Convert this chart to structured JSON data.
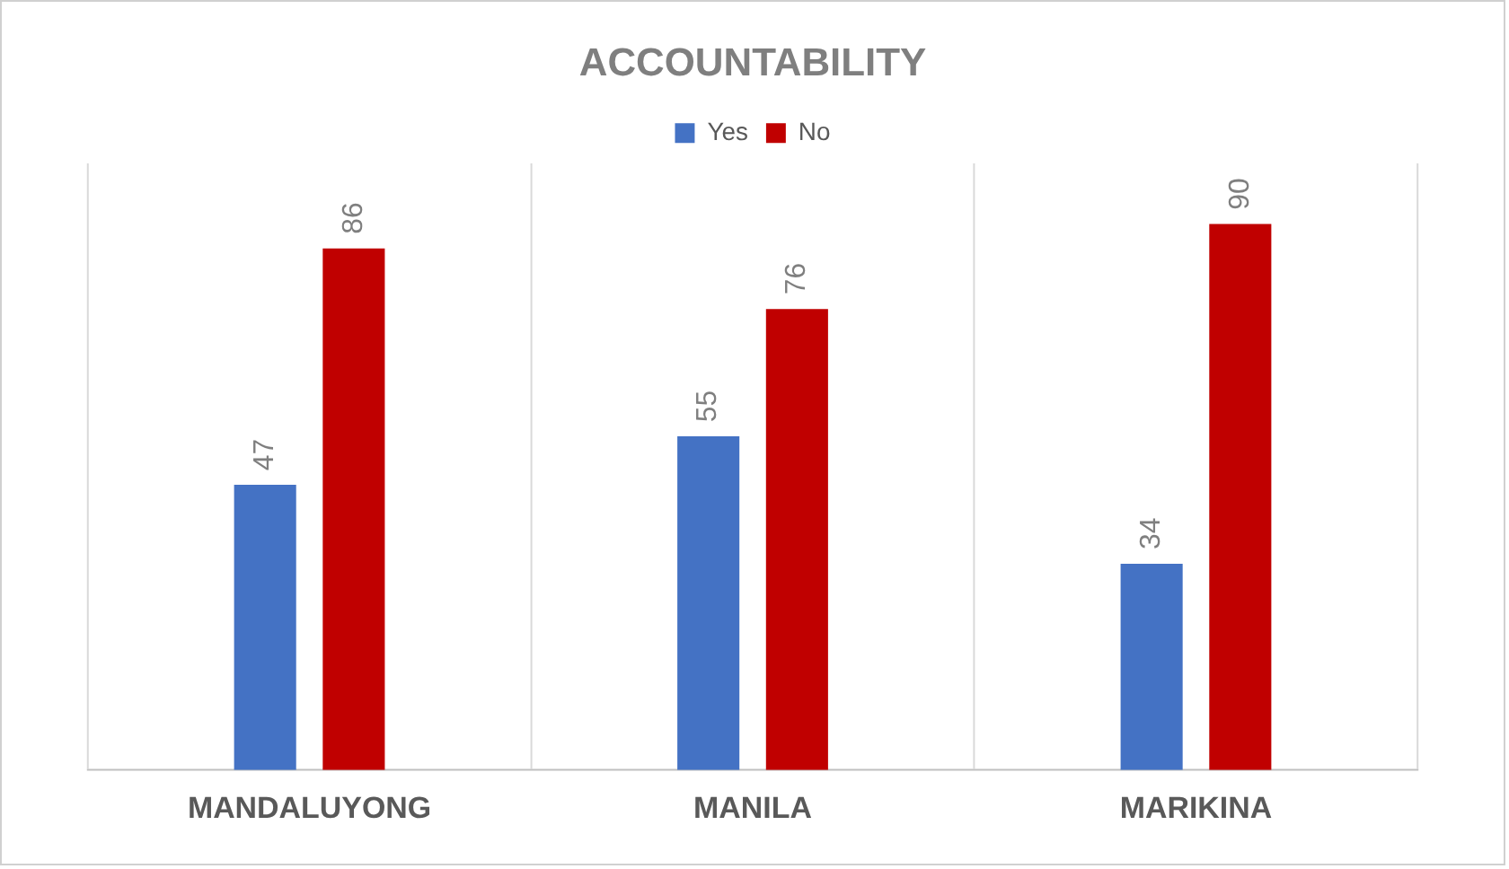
{
  "chart_data": {
    "type": "bar",
    "title": "ACCOUNTABILITY",
    "categories": [
      "MANDALUYONG",
      "MANILA",
      "MARIKINA"
    ],
    "series": [
      {
        "name": "Yes",
        "color": "#4472c4",
        "values": [
          47,
          55,
          34
        ]
      },
      {
        "name": "No",
        "color": "#c00000",
        "values": [
          86,
          76,
          90
        ]
      }
    ],
    "data_labels": true,
    "legend": "top",
    "grid": "x"
  }
}
